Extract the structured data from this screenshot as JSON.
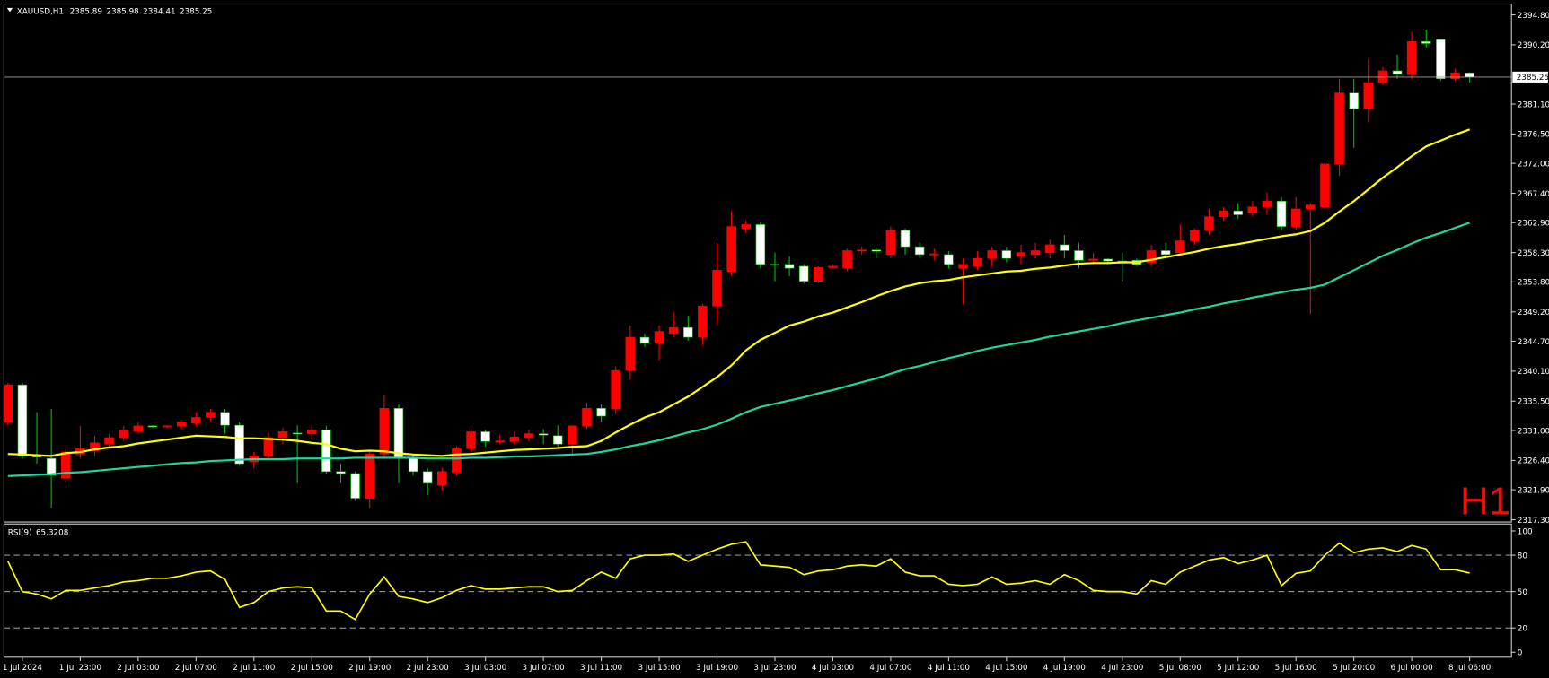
{
  "chart_data": [
    {
      "type": "candlestick",
      "title": "XAUUSD,H1",
      "annotation": "H1",
      "up_color": "#ff0000",
      "down_color": "#ffffff",
      "down_wick_color": "#00c000",
      "ylim": [
        2317.1,
        2396.3
      ],
      "yticks": [
        {
          "value": 2394.8,
          "label": "2394.80"
        },
        {
          "value": 2390.2,
          "label": "2390.20"
        },
        {
          "value": 2381.1,
          "label": "2381.10"
        },
        {
          "value": 2376.5,
          "label": "2376.50"
        },
        {
          "value": 2372,
          "label": "2372.00"
        },
        {
          "value": 2367.4,
          "label": "2367.40"
        },
        {
          "value": 2362.9,
          "label": "2362.90"
        },
        {
          "value": 2358.3,
          "label": "2358.30"
        },
        {
          "value": 2353.8,
          "label": "2353.80"
        },
        {
          "value": 2349.2,
          "label": "2349.20"
        },
        {
          "value": 2344.7,
          "label": "2344.70"
        },
        {
          "value": 2340.1,
          "label": "2340.10"
        },
        {
          "value": 2335.5,
          "label": "2335.50"
        },
        {
          "value": 2331,
          "label": "2331.00"
        },
        {
          "value": 2326.4,
          "label": "2326.40"
        },
        {
          "value": 2321.9,
          "label": "2321.90"
        },
        {
          "value": 2317.3,
          "label": "2317.30"
        }
      ],
      "xticks": [
        {
          "value": 1,
          "label": "1 Jul 2024"
        },
        {
          "value": 5,
          "label": "1 Jul 23:00"
        },
        {
          "value": 9,
          "label": "2 Jul 03:00"
        },
        {
          "value": 13,
          "label": "2 Jul 07:00"
        },
        {
          "value": 17,
          "label": "2 Jul 11:00"
        },
        {
          "value": 21,
          "label": "2 Jul 15:00"
        },
        {
          "value": 25,
          "label": "2 Jul 19:00"
        },
        {
          "value": 29,
          "label": "2 Jul 23:00"
        },
        {
          "value": 33,
          "label": "3 Jul 03:00"
        },
        {
          "value": 37,
          "label": "3 Jul 07:00"
        },
        {
          "value": 41,
          "label": "3 Jul 11:00"
        },
        {
          "value": 45,
          "label": "3 Jul 15:00"
        },
        {
          "value": 49,
          "label": "3 Jul 19:00"
        },
        {
          "value": 53,
          "label": "3 Jul 23:00"
        },
        {
          "value": 57,
          "label": "4 Jul 03:00"
        },
        {
          "value": 61,
          "label": "4 Jul 07:00"
        },
        {
          "value": 65,
          "label": "4 Jul 11:00"
        },
        {
          "value": 69,
          "label": "4 Jul 15:00"
        },
        {
          "value": 73,
          "label": "4 Jul 19:00"
        },
        {
          "value": 77,
          "label": "4 Jul 23:00"
        },
        {
          "value": 81,
          "label": "5 Jul 08:00"
        },
        {
          "value": 85,
          "label": "5 Jul 12:00"
        },
        {
          "value": 89,
          "label": "5 Jul 16:00"
        },
        {
          "value": 93,
          "label": "5 Jul 20:00"
        },
        {
          "value": 97,
          "label": "6 Jul 00:00"
        },
        {
          "value": 101,
          "label": "8 Jul 06:00"
        }
      ],
      "open": [
        2332.3,
        2338.0,
        2327.1,
        2326.7,
        2323.7,
        2327.4,
        2327.9,
        2328.9,
        2329.9,
        2330.9,
        2331.7,
        2331.6,
        2331.7,
        2332.1,
        2333.0,
        2333.8,
        2331.8,
        2326.2,
        2327.1,
        2329.9,
        2330.6,
        2330.5,
        2331.1,
        2324.7,
        2324.4,
        2320.6,
        2327.4,
        2334.4,
        2326.7,
        2324.7,
        2322.6,
        2324.6,
        2328.2,
        2330.8,
        2329.3,
        2329.3,
        2329.9,
        2330.5,
        2330.2,
        2328.9,
        2331.7,
        2334.4,
        2334.3,
        2340.2,
        2345.3,
        2344.4,
        2345.9,
        2346.8,
        2345.3,
        2350.1,
        2355.4,
        2362.0,
        2362.6,
        2356.5,
        2356.5,
        2356.2,
        2353.9,
        2356.0,
        2355.9,
        2358.6,
        2358.7,
        2358.0,
        2361.7,
        2359.2,
        2358.0,
        2358.0,
        2355.9,
        2356.2,
        2357.4,
        2358.6,
        2357.7,
        2358.0,
        2358.3,
        2359.5,
        2358.6,
        2357.1,
        2357.3,
        2357.0,
        2357.1,
        2356.8,
        2358.6,
        2358.3,
        2360.1,
        2361.7,
        2363.8,
        2364.7,
        2364.4,
        2365.3,
        2366.2,
        2362.3,
        2365.0,
        2365.3,
        2371.9,
        2382.8,
        2380.4,
        2384.4,
        2386.2,
        2385.6,
        2390.7,
        2391.0,
        2385.0,
        2385.89
      ],
      "high": [
        2338.3,
        2338.3,
        2333.8,
        2334.3,
        2328.2,
        2331.7,
        2330.2,
        2330.5,
        2331.7,
        2332.3,
        2331.8,
        2331.8,
        2332.6,
        2333.8,
        2334.3,
        2334.3,
        2332.3,
        2327.7,
        2330.8,
        2331.4,
        2331.8,
        2331.8,
        2331.7,
        2325.9,
        2324.7,
        2327.7,
        2336.5,
        2335.0,
        2327.4,
        2325.2,
        2325.2,
        2328.6,
        2331.2,
        2331.1,
        2330.3,
        2330.8,
        2331.1,
        2331.2,
        2331.8,
        2331.8,
        2335.3,
        2335.0,
        2340.8,
        2347.1,
        2345.9,
        2347.1,
        2349.2,
        2348.6,
        2350.4,
        2359.8,
        2364.7,
        2363.2,
        2362.9,
        2358.3,
        2357.7,
        2356.5,
        2356.2,
        2356.5,
        2358.9,
        2359.2,
        2359.2,
        2362.3,
        2362.0,
        2359.8,
        2358.9,
        2358.5,
        2357.4,
        2358.5,
        2359.2,
        2359.2,
        2359.5,
        2359.8,
        2360.3,
        2361.0,
        2359.8,
        2358.3,
        2357.4,
        2358.3,
        2357.4,
        2359.5,
        2359.8,
        2362.6,
        2362.0,
        2365.0,
        2365.3,
        2365.9,
        2366.2,
        2367.5,
        2366.8,
        2366.8,
        2365.9,
        2372.2,
        2385.0,
        2385.0,
        2388.0,
        2386.8,
        2388.7,
        2392.2,
        2392.5,
        2391.0,
        2386.5,
        2385.98
      ],
      "low": [
        2331.8,
        2326.7,
        2325.9,
        2319.1,
        2322.9,
        2326.7,
        2327.1,
        2328.2,
        2329.4,
        2330.5,
        2331.4,
        2331.4,
        2331.2,
        2331.7,
        2332.4,
        2330.5,
        2325.6,
        2325.2,
        2326.7,
        2328.9,
        2322.9,
        2329.7,
        2324.4,
        2322.9,
        2320.2,
        2319.1,
        2326.7,
        2322.9,
        2324.1,
        2321.1,
        2321.8,
        2324.1,
        2327.7,
        2328.6,
        2329.0,
        2328.9,
        2329.3,
        2328.9,
        2328.2,
        2327.1,
        2331.2,
        2332.3,
        2333.5,
        2338.8,
        2343.8,
        2341.8,
        2345.3,
        2344.8,
        2344.1,
        2347.4,
        2354.7,
        2361.3,
        2355.9,
        2353.9,
        2354.7,
        2353.5,
        2353.6,
        2355.9,
        2355.4,
        2358.0,
        2357.4,
        2357.4,
        2358.0,
        2357.4,
        2357.1,
        2355.9,
        2350.4,
        2355.6,
        2356.2,
        2356.8,
        2356.5,
        2357.4,
        2357.4,
        2357.4,
        2355.9,
        2356.5,
        2356.5,
        2353.9,
        2356.2,
        2356.2,
        2357.4,
        2358.0,
        2359.5,
        2361.0,
        2363.2,
        2363.5,
        2363.8,
        2364.1,
        2361.7,
        2361.7,
        2348.9,
        2365.0,
        2370.1,
        2374.4,
        2378.3,
        2384.0,
        2385.0,
        2385.0,
        2389.8,
        2384.7,
        2384.7,
        2384.41
      ],
      "close": [
        2338.0,
        2327.1,
        2326.9,
        2324.1,
        2327.7,
        2328.2,
        2329.1,
        2329.9,
        2331.1,
        2331.7,
        2331.6,
        2331.7,
        2332.3,
        2333.0,
        2333.8,
        2331.8,
        2325.9,
        2327.1,
        2329.9,
        2330.8,
        2330.5,
        2331.1,
        2324.7,
        2324.4,
        2320.6,
        2327.4,
        2334.4,
        2326.7,
        2324.7,
        2322.9,
        2324.7,
        2328.2,
        2330.8,
        2329.3,
        2329.4,
        2330.0,
        2330.5,
        2330.3,
        2328.9,
        2331.7,
        2334.4,
        2333.2,
        2340.2,
        2345.3,
        2344.4,
        2346.2,
        2346.8,
        2345.3,
        2350.1,
        2355.6,
        2362.3,
        2362.6,
        2356.5,
        2356.4,
        2355.9,
        2353.9,
        2356.0,
        2356.2,
        2358.6,
        2358.7,
        2358.5,
        2361.7,
        2359.2,
        2358.0,
        2358.1,
        2356.5,
        2356.5,
        2357.4,
        2358.6,
        2357.4,
        2358.3,
        2358.6,
        2359.5,
        2358.6,
        2357.1,
        2357.3,
        2357.0,
        2356.8,
        2356.5,
        2358.6,
        2358.0,
        2360.1,
        2361.7,
        2363.8,
        2364.7,
        2364.1,
        2365.3,
        2366.2,
        2362.3,
        2365.0,
        2365.6,
        2371.9,
        2382.8,
        2380.4,
        2384.4,
        2386.2,
        2385.7,
        2390.7,
        2390.4,
        2385.0,
        2385.9,
        2385.25
      ],
      "overlays": [
        {
          "color": "#ffff00",
          "values": [
            2327.4,
            2327.3,
            2327.2,
            2327.1,
            2327.5,
            2327.7,
            2328.1,
            2328.4,
            2328.6,
            2329.0,
            2329.3,
            2329.6,
            2329.9,
            2330.2,
            2330.1,
            2330.0,
            2329.8,
            2329.8,
            2329.7,
            2329.6,
            2329.4,
            2329.1,
            2328.9,
            2328.2,
            2327.8,
            2327.9,
            2327.8,
            2327.5,
            2327.3,
            2327.2,
            2327.1,
            2327.3,
            2327.4,
            2327.6,
            2327.8,
            2328.0,
            2328.1,
            2328.2,
            2328.3,
            2328.5,
            2328.6,
            2329.4,
            2330.7,
            2331.9,
            2333.0,
            2333.8,
            2335.0,
            2336.2,
            2337.7,
            2339.2,
            2341.0,
            2343.3,
            2344.9,
            2346.0,
            2347.1,
            2347.7,
            2348.5,
            2349.1,
            2349.9,
            2350.7,
            2351.6,
            2352.4,
            2353.1,
            2353.6,
            2353.9,
            2354.1,
            2354.5,
            2354.8,
            2355.1,
            2355.4,
            2355.5,
            2355.8,
            2356.0,
            2356.3,
            2356.6,
            2356.7,
            2356.7,
            2356.8,
            2356.8,
            2357.2,
            2357.6,
            2358.0,
            2358.4,
            2358.9,
            2359.3,
            2359.6,
            2360.0,
            2360.4,
            2360.8,
            2361.1,
            2361.6,
            2362.9,
            2364.6,
            2366.2,
            2368.0,
            2369.8,
            2371.4,
            2373.1,
            2374.6,
            2375.5,
            2376.4,
            2377.2
          ]
        },
        {
          "color": "#1fd6a0",
          "values": [
            2324.0,
            2324.1,
            2324.2,
            2324.3,
            2324.5,
            2324.6,
            2324.8,
            2325.0,
            2325.2,
            2325.4,
            2325.6,
            2325.8,
            2326.0,
            2326.1,
            2326.3,
            2326.4,
            2326.5,
            2326.6,
            2326.6,
            2326.6,
            2326.7,
            2326.7,
            2326.7,
            2326.7,
            2326.8,
            2326.8,
            2326.8,
            2326.8,
            2326.8,
            2326.7,
            2326.7,
            2326.7,
            2326.8,
            2326.8,
            2326.9,
            2327.0,
            2327.0,
            2327.1,
            2327.2,
            2327.3,
            2327.4,
            2327.7,
            2328.1,
            2328.6,
            2329.0,
            2329.5,
            2330.1,
            2330.7,
            2331.2,
            2331.9,
            2332.8,
            2333.8,
            2334.6,
            2335.1,
            2335.6,
            2336.1,
            2336.7,
            2337.2,
            2337.8,
            2338.4,
            2339.0,
            2339.7,
            2340.4,
            2340.9,
            2341.5,
            2342.1,
            2342.6,
            2343.2,
            2343.7,
            2344.1,
            2344.5,
            2344.9,
            2345.4,
            2345.8,
            2346.2,
            2346.6,
            2347.0,
            2347.5,
            2347.9,
            2348.3,
            2348.7,
            2349.1,
            2349.6,
            2350.0,
            2350.5,
            2350.9,
            2351.4,
            2351.8,
            2352.2,
            2352.6,
            2352.9,
            2353.4,
            2354.5,
            2355.6,
            2356.7,
            2357.8,
            2358.7,
            2359.7,
            2360.6,
            2361.3,
            2362.1,
            2362.9
          ]
        }
      ]
    },
    {
      "type": "line",
      "title": "RSI(9)",
      "color": "#ffff00",
      "ylim": [
        0,
        100
      ],
      "yticks": [
        100,
        80,
        50,
        20,
        0
      ],
      "levels": [
        80,
        50,
        20
      ],
      "values": [
        75,
        50,
        48,
        44,
        51,
        51,
        53,
        55,
        58,
        59,
        61,
        61,
        63,
        66,
        67,
        60,
        37,
        41,
        50,
        53,
        54,
        53,
        34,
        34,
        27,
        48,
        62,
        46,
        44,
        41,
        45,
        51,
        55,
        52,
        52,
        53,
        54,
        54,
        50,
        51,
        59,
        66,
        61,
        77,
        80,
        80,
        81,
        75,
        80,
        85,
        89,
        91,
        72,
        71,
        70,
        64,
        67,
        68,
        71,
        72,
        71,
        77,
        66,
        63,
        63,
        56,
        55,
        56,
        62,
        56,
        57,
        59,
        56,
        64,
        59,
        51,
        50,
        50,
        48,
        59,
        56,
        66,
        71,
        76,
        78,
        73,
        76,
        80,
        55,
        65,
        67,
        80,
        90,
        82,
        85,
        86,
        83,
        88,
        85,
        68,
        68,
        65.3208
      ]
    }
  ]
}
